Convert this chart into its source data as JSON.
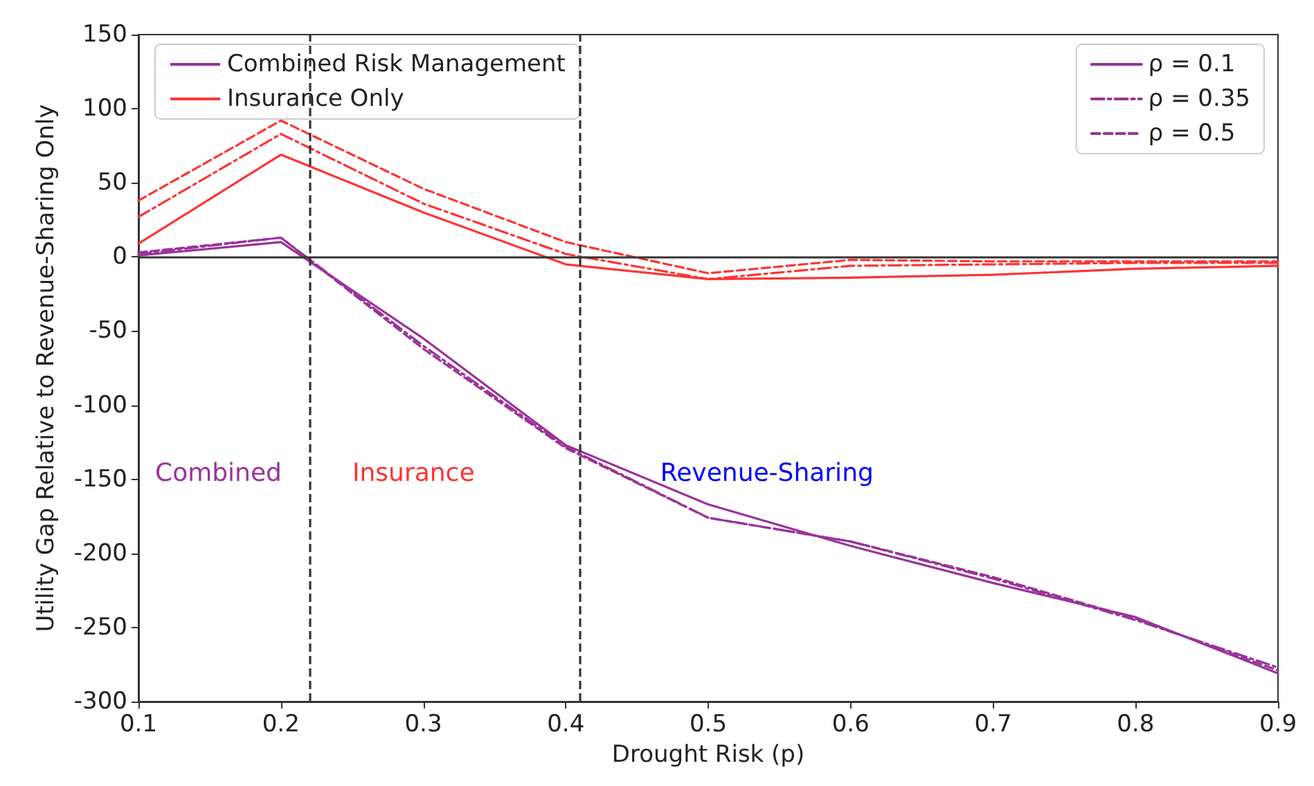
{
  "chart_data": {
    "type": "line",
    "xlabel": "Drought Risk (p)",
    "ylabel": "Utility Gap Relative to Revenue-Sharing Only",
    "x": [
      0.1,
      0.2,
      0.3,
      0.4,
      0.5,
      0.6,
      0.7,
      0.8,
      0.9
    ],
    "xlim": [
      0.1,
      0.9
    ],
    "xticks": [
      0.1,
      0.2,
      0.3,
      0.4,
      0.5,
      0.6,
      0.7,
      0.8,
      0.9
    ],
    "ylim": [
      -300,
      150
    ],
    "yticks": [
      -300,
      -250,
      -200,
      -150,
      -100,
      -50,
      0,
      50,
      100,
      150
    ],
    "grid": false,
    "legend": "top right",
    "series": [
      {
        "name": "ρ = 0.1",
        "color": "#993399",
        "line_style": "solid",
        "values": [
          1,
          10,
          -55,
          -127,
          -167,
          -195,
          -220,
          -243,
          -281
        ]
      },
      {
        "name": "ρ = 0.35",
        "color": "#993399",
        "line_style": "dashdot",
        "values": [
          2,
          13,
          -60,
          -128,
          -176,
          -192,
          -217,
          -245,
          -277
        ]
      },
      {
        "name": "ρ = 0.5",
        "color": "#993399",
        "line_style": "dashed",
        "values": [
          3,
          13,
          -62,
          -129,
          -176,
          -192,
          -216,
          -244,
          -279
        ]
      },
      {
        "color": "#ff3333",
        "line_style": "solid",
        "values": [
          9,
          69,
          30,
          -5,
          -15,
          -14,
          -12,
          -8,
          -6
        ]
      },
      {
        "color": "#ff3333",
        "line_style": "dashdot",
        "values": [
          27,
          83,
          36,
          2,
          -15,
          -6,
          -5,
          -4,
          -4
        ]
      },
      {
        "color": "#ff3333",
        "line_style": "dashed",
        "values": [
          38,
          92,
          46,
          10,
          -11,
          -2,
          -3,
          -3,
          -3
        ]
      }
    ],
    "ref_lines": [
      {
        "axis": "x",
        "value": 0.22,
        "color": "#333333",
        "line_style": "dashed"
      },
      {
        "axis": "x",
        "value": 0.41,
        "color": "#333333",
        "line_style": "dashed"
      },
      {
        "axis": "y",
        "value": 0,
        "color": "#333333",
        "line_style": "solid"
      }
    ],
    "annotations": [
      "Combined",
      "Insurance",
      "Revenue-Sharing",
      "Combined Risk Management",
      "Insurance Only"
    ]
  }
}
